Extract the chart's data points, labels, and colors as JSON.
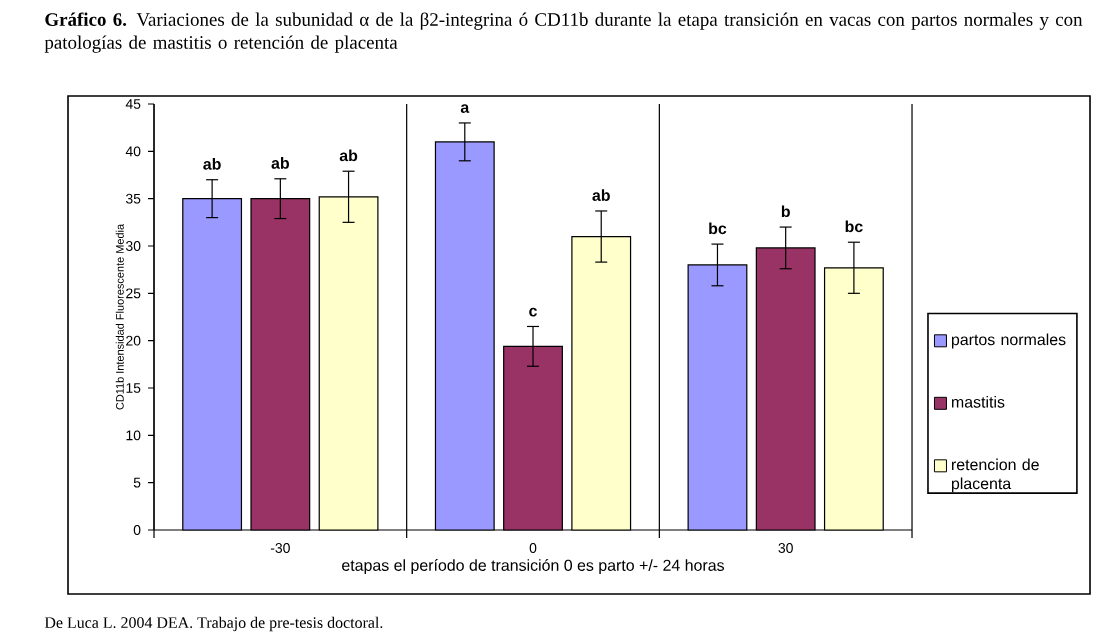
{
  "chart_data": {
    "type": "bar",
    "title": "**Gráfico 6.** Variaciones de la subunidad α de la β2-integrina ó CD11b durante la etapa transición en vacas con partos normales y con patologías de mastitis o retención de placenta",
    "xlabel": "etapas el período de transición 0 es parto +/- 24 horas",
    "ylabel": "CD11b Intensidad Fluorescente Media",
    "categories": [
      "-30",
      "0",
      "30"
    ],
    "series": [
      {
        "name": "partos normales",
        "color": "#9999ff",
        "values": [
          35,
          41,
          28
        ],
        "errors": [
          2,
          2,
          2.2
        ],
        "value_labels": [
          "ab",
          "a",
          "bc"
        ]
      },
      {
        "name": "mastitis",
        "color": "#993366",
        "values": [
          35,
          19.4,
          29.8
        ],
        "errors": [
          2.1,
          2.1,
          2.2
        ],
        "value_labels": [
          "ab",
          "c",
          "b"
        ]
      },
      {
        "name": "retencion de placenta",
        "color": "#ffffcc",
        "values": [
          35.2,
          31,
          27.7
        ],
        "errors": [
          2.7,
          2.7,
          2.7
        ],
        "value_labels": [
          "ab",
          "ab",
          "bc"
        ]
      }
    ],
    "ylim": [
      0,
      45
    ],
    "yticks": [
      0,
      5,
      10,
      15,
      20,
      25,
      30,
      35,
      40,
      45
    ],
    "grid": "x",
    "legend": "right",
    "annotations": [
      "De Luca L. 2004 DEA. Trabajo de pre-tesis doctoral."
    ]
  }
}
